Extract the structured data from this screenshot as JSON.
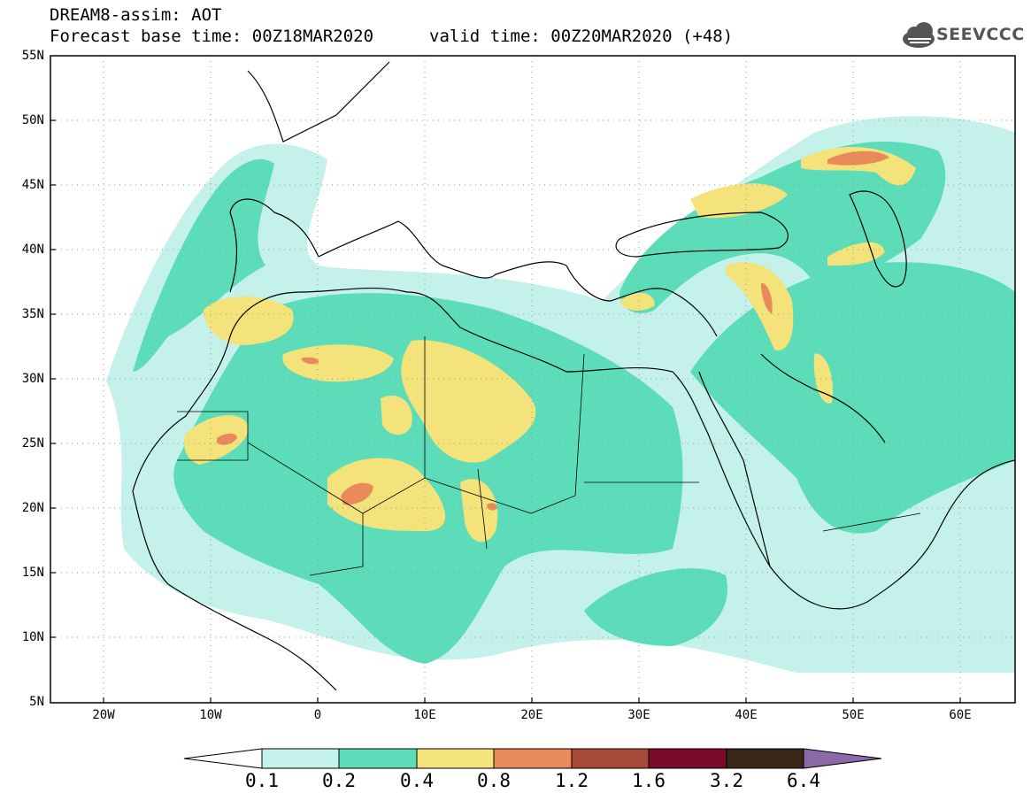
{
  "header": {
    "line1": "DREAM8-assim: AOT",
    "line2": "Forecast base time: 00Z18MAR2020",
    "line3": "valid time: 00Z20MAR2020 (+48)"
  },
  "logo": {
    "text": "SEEVCCC",
    "icon": "cloud-icon"
  },
  "axes": {
    "y_labels": [
      "55N",
      "50N",
      "45N",
      "40N",
      "35N",
      "30N",
      "25N",
      "20N",
      "15N",
      "10N",
      "5N"
    ],
    "x_labels": [
      "20W",
      "10W",
      "0",
      "10E",
      "20E",
      "30E",
      "40E",
      "50E",
      "60E"
    ]
  },
  "colorbar": {
    "labels": [
      "0.1",
      "0.2",
      "0.4",
      "0.8",
      "1.2",
      "1.6",
      "3.2",
      "6.4"
    ],
    "colors": [
      "#c4f1ea",
      "#5cdcb8",
      "#f4e27a",
      "#e88a5a",
      "#a84a3a",
      "#7a0a2a",
      "#3a2618",
      "#8a6aa8"
    ]
  }
}
